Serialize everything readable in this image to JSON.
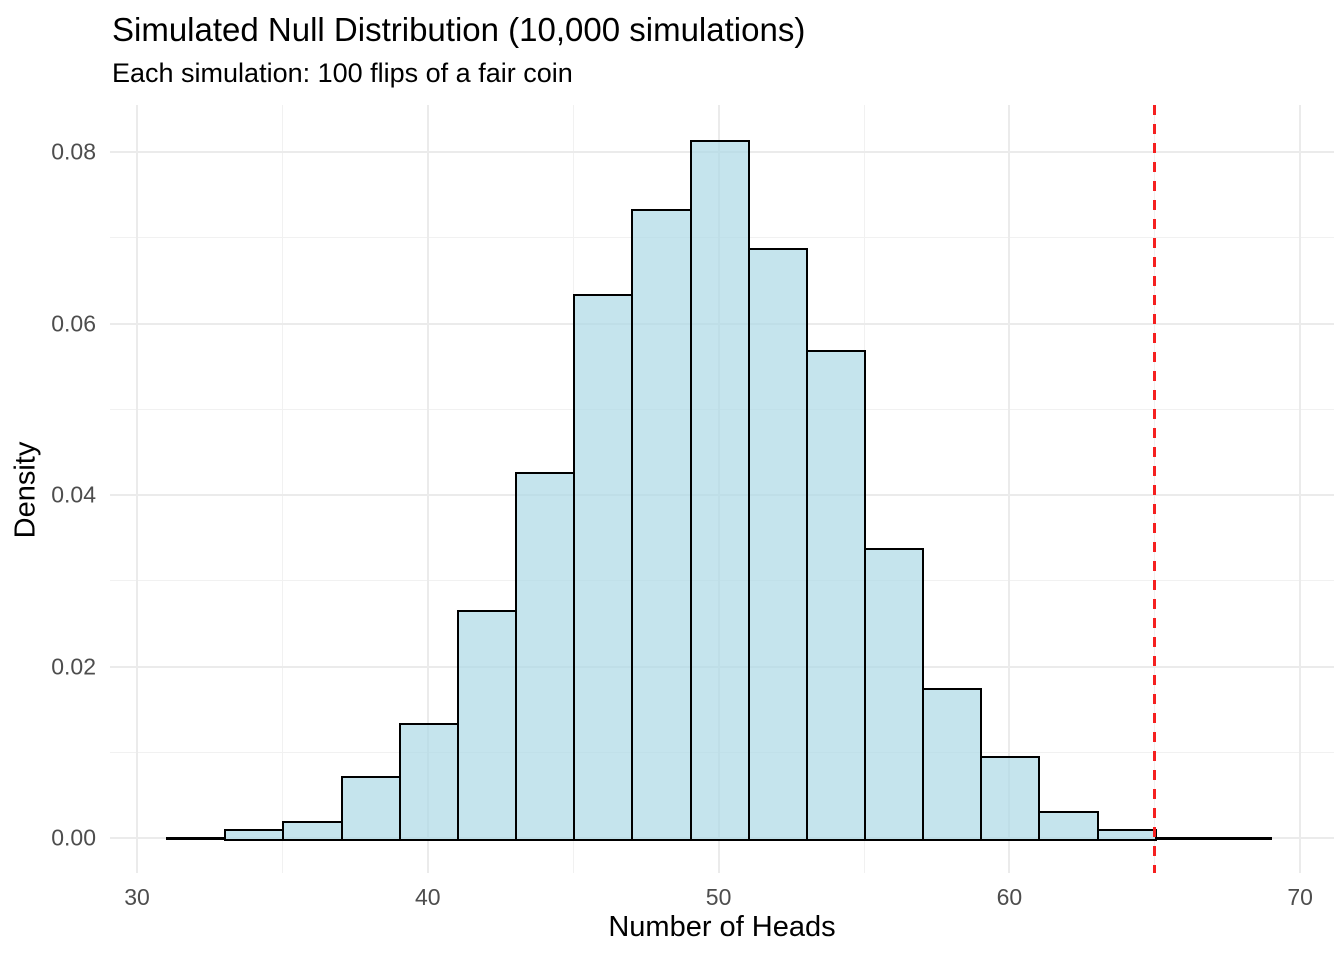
{
  "title": "Simulated Null Distribution (10,000 simulations)",
  "subtitle": "Each simulation: 100 flips of a fair coin",
  "chart_data": {
    "type": "bar",
    "subtype": "histogram",
    "title": "Simulated Null Distribution (10,000 simulations)",
    "subtitle": "Each simulation: 100 flips of a fair coin",
    "xlabel": "Number of Heads",
    "ylabel": "Density",
    "xlim": [
      29.1,
      71.1
    ],
    "ylim": [
      0,
      0.0854
    ],
    "grid": "on",
    "legend": "none",
    "bin_width": 2,
    "x_ticks": [
      {
        "value": 30,
        "label": "30"
      },
      {
        "value": 40,
        "label": "40"
      },
      {
        "value": 50,
        "label": "50"
      },
      {
        "value": 60,
        "label": "60"
      },
      {
        "value": 70,
        "label": "70"
      }
    ],
    "y_ticks": [
      {
        "value": 0.0,
        "label": "0.00"
      },
      {
        "value": 0.02,
        "label": "0.02"
      },
      {
        "value": 0.04,
        "label": "0.04"
      },
      {
        "value": 0.06,
        "label": "0.06"
      },
      {
        "value": 0.08,
        "label": "0.08"
      }
    ],
    "x_minor_gridlines": [
      35,
      45,
      55,
      65
    ],
    "y_minor_gridlines": [
      0.01,
      0.03,
      0.05,
      0.07
    ],
    "bins": [
      {
        "from": 31,
        "to": 33,
        "density": 0.0002
      },
      {
        "from": 33,
        "to": 35,
        "density": 0.0008
      },
      {
        "from": 35,
        "to": 37,
        "density": 0.0018
      },
      {
        "from": 37,
        "to": 39,
        "density": 0.007
      },
      {
        "from": 39,
        "to": 41,
        "density": 0.0132
      },
      {
        "from": 41,
        "to": 43,
        "density": 0.0264
      },
      {
        "from": 43,
        "to": 45,
        "density": 0.0425
      },
      {
        "from": 45,
        "to": 47,
        "density": 0.0632
      },
      {
        "from": 47,
        "to": 49,
        "density": 0.0731
      },
      {
        "from": 49,
        "to": 51,
        "density": 0.0812
      },
      {
        "from": 51,
        "to": 53,
        "density": 0.0686
      },
      {
        "from": 53,
        "to": 55,
        "density": 0.0567
      },
      {
        "from": 55,
        "to": 57,
        "density": 0.0336
      },
      {
        "from": 57,
        "to": 59,
        "density": 0.0173
      },
      {
        "from": 59,
        "to": 61,
        "density": 0.0093
      },
      {
        "from": 61,
        "to": 63,
        "density": 0.0029
      },
      {
        "from": 63,
        "to": 65,
        "density": 0.0008
      },
      {
        "from": 65,
        "to": 67,
        "density": 0.0002
      },
      {
        "from": 67,
        "to": 69,
        "density": 0.0001
      }
    ],
    "reference_line": {
      "x": 65,
      "orientation": "vertical",
      "style": "dashed",
      "color": "#f52020"
    },
    "colors": {
      "bar_fill": "#ADD8E6",
      "bar_fill_alpha": 0.7,
      "bar_stroke": "#000000",
      "reference_line": "#f52020",
      "grid_major": "#ebebeb",
      "grid_minor": "#f1f1f1",
      "axis_text": "#4d4d4d",
      "title_text": "#000000",
      "background": "#ffffff"
    }
  }
}
